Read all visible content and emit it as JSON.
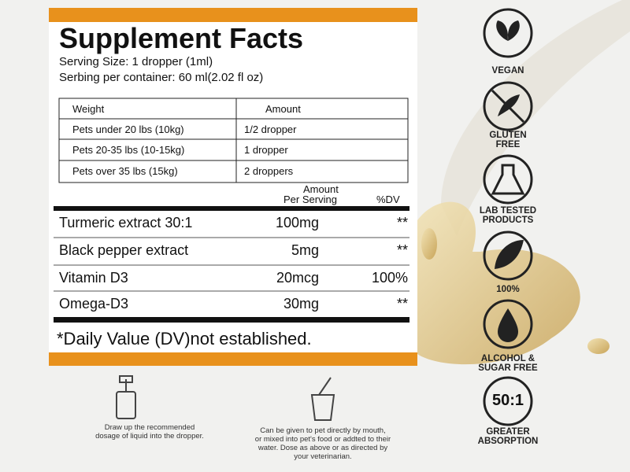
{
  "facts": {
    "title": "Supplement Facts",
    "serving_size": "Serving Size: 1 dropper (1ml)",
    "servings_per_container": "Serbing per container: 60 ml(2.02 fl oz)",
    "dosage_table": {
      "header": [
        "Weight",
        "Amount"
      ],
      "rows": [
        [
          "Pets under 20 lbs (10kg)",
          "1/2 dropper"
        ],
        [
          "Pets 20-35 lbs (10-15kg)",
          "1 dropper"
        ],
        [
          "Pets over 35 lbs (15kg)",
          "2 droppers"
        ]
      ]
    },
    "nutrients": {
      "header": {
        "amount": [
          "Amount",
          "Per Serving"
        ],
        "dv": "%DV"
      },
      "rows": [
        [
          "Turmeric extract 30:1",
          "100mg",
          "**"
        ],
        [
          "Black pepper extract",
          "5mg",
          "**"
        ],
        [
          "Vitamin D3",
          "20mcg",
          "100%"
        ],
        [
          "Omega-D3",
          "30mg",
          "**"
        ]
      ]
    },
    "footnote": "*Daily Value (DV)not established."
  },
  "badges": [
    {
      "label": [
        "VEGAN"
      ]
    },
    {
      "label": [
        "GLUTEN",
        "FREE"
      ]
    },
    {
      "label": [
        "LAB TESTED",
        "PRODUCTS"
      ]
    },
    {
      "label": [
        "100%"
      ]
    },
    {
      "label": [
        "ALCOHOL &",
        "SUGAR FREE"
      ]
    },
    {
      "icon_text": "50:1",
      "label": [
        "GREATER",
        "ABSORPTION"
      ]
    }
  ],
  "instructions": [
    [
      "Draw up the recommended",
      "dosage of liquid into the dropper."
    ],
    [
      "Can be given to pet directly by mouth,",
      "or mixed into pet's food or addted to their",
      "water. Dose as above or as directed by",
      "your veterinarian."
    ]
  ]
}
